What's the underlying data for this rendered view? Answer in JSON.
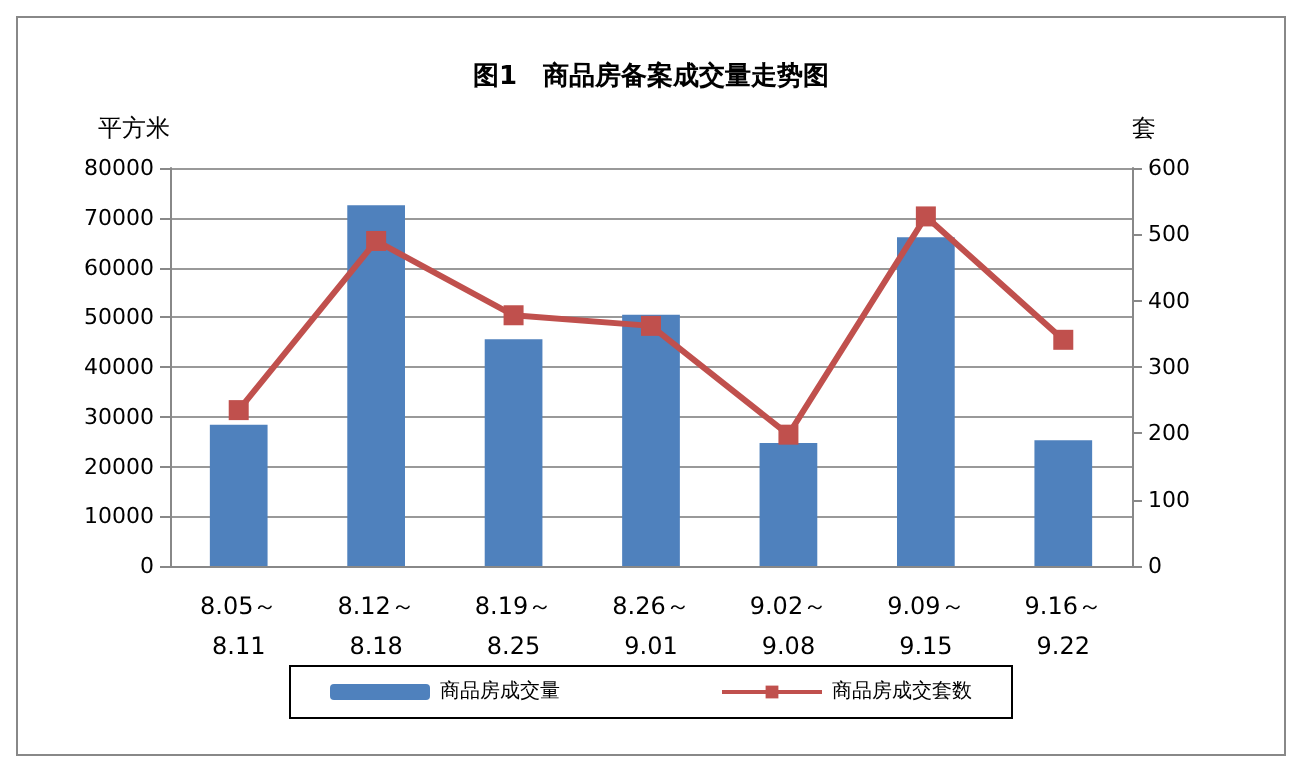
{
  "chart_data": {
    "type": "bar",
    "title": "图1　商品房备案成交量走势图",
    "ylabel": "平方米",
    "y2label": "套",
    "categories": [
      "8.05～\n8.11",
      "8.12～\n8.18",
      "8.19～\n8.25",
      "8.26～\n9.01",
      "9.02～\n9.08",
      "9.09～\n9.15",
      "9.16～\n9.22"
    ],
    "series": [
      {
        "name": "商品房成交量",
        "color": "#4f81bd",
        "values": [
          28400,
          72500,
          45600,
          50500,
          24700,
          66100,
          25300
        ]
      },
      {
        "name": "商品房成交套数",
        "type": "line",
        "axis": "y2",
        "color": "#c0504d",
        "marker": "square",
        "values": [
          235,
          490,
          378,
          362,
          198,
          527,
          341
        ]
      }
    ],
    "ylim": [
      0,
      80000
    ],
    "yticks": [
      0,
      10000,
      20000,
      30000,
      40000,
      50000,
      60000,
      70000,
      80000
    ],
    "y2lim": [
      0,
      600
    ],
    "y2ticks": [
      0,
      100,
      200,
      300,
      400,
      500,
      600
    ],
    "grid": "y",
    "legend": "bottom"
  }
}
